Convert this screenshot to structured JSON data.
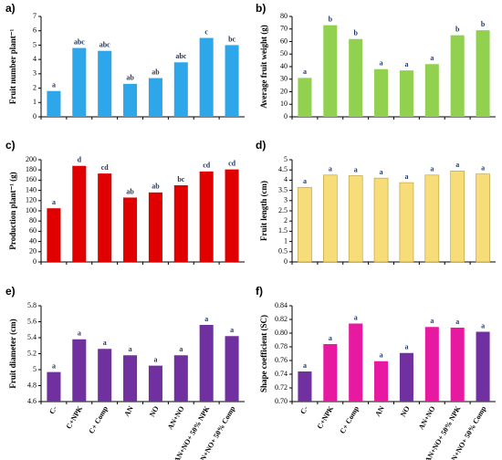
{
  "chart_data": [
    {
      "type": "bar",
      "title": "a)",
      "y_label": "Fruit number plant⁻¹",
      "values": [
        1.8,
        4.8,
        4.6,
        2.3,
        2.7,
        3.8,
        5.5,
        5.0
      ],
      "annotations": [
        "a",
        "abc",
        "abc",
        "ab",
        "ab",
        "abc",
        "c",
        "bc"
      ],
      "color": "#2ea6ea",
      "ylim": [
        0,
        7
      ],
      "yticks": [
        0,
        1,
        2,
        3,
        4,
        5,
        6,
        7
      ]
    },
    {
      "type": "bar",
      "title": "b)",
      "y_label": "Average fruit weight (g)",
      "values": [
        31,
        73,
        62,
        38,
        37,
        42,
        65,
        69
      ],
      "annotations": [
        "a",
        "b",
        "b",
        "a",
        "a",
        "a",
        "b",
        "b"
      ],
      "color": "#92d050",
      "ylim": [
        0,
        80
      ],
      "yticks": [
        0,
        10,
        20,
        30,
        40,
        50,
        60,
        70,
        80
      ]
    },
    {
      "type": "bar",
      "title": "c)",
      "y_label": "Production plant⁻¹ (g)",
      "values": [
        105,
        188,
        173,
        126,
        136,
        150,
        177,
        181
      ],
      "annotations": [
        "a",
        "d",
        "cd",
        "ab",
        "ab",
        "bc",
        "cd",
        "cd"
      ],
      "color": "#e00000",
      "ylim": [
        0,
        200
      ],
      "yticks": [
        0,
        20,
        40,
        60,
        80,
        100,
        120,
        140,
        160,
        180,
        200
      ]
    },
    {
      "type": "bar",
      "title": "d)",
      "y_label": "Fruit length (cm)",
      "values": [
        3.65,
        4.25,
        4.22,
        4.1,
        3.88,
        4.25,
        4.45,
        4.3
      ],
      "annotations": [
        "a",
        "a",
        "a",
        "a",
        "a",
        "a",
        "a",
        "a"
      ],
      "color": "#f7dc7a",
      "ylim": [
        0,
        5
      ],
      "yticks": [
        0,
        0.5,
        1,
        1.5,
        2,
        2.5,
        3,
        3.5,
        4,
        4.5,
        5
      ]
    },
    {
      "type": "bar",
      "title": "e)",
      "y_label": "Fruit diameter (cm)",
      "categories": [
        "C-",
        "C+NPK",
        "C+ Comp",
        "AN",
        "NO",
        "AN+NO",
        "AN+NO+ 50% NPK",
        "AN+NO+ 50% Comp"
      ],
      "values": [
        4.97,
        5.38,
        5.26,
        5.18,
        5.05,
        5.18,
        5.56,
        5.42
      ],
      "annotations": [
        "a",
        "a",
        "a",
        "a",
        "a",
        "a",
        "a",
        "a"
      ],
      "color": "#7030a0",
      "ylim": [
        4.6,
        5.8
      ],
      "yticks": [
        4.6,
        4.8,
        5,
        5.2,
        5.4,
        5.6,
        5.8
      ]
    },
    {
      "type": "bar",
      "title": "f)",
      "y_label": "Shape coefficient (SC)",
      "categories": [
        "C-",
        "C+NPK",
        "C+ Comp",
        "AN",
        "NO",
        "AN+NO",
        "AN+NO+ 50% NPK",
        "AN+NO+ 50% Comp"
      ],
      "values": [
        0.744,
        0.784,
        0.814,
        0.759,
        0.771,
        0.809,
        0.808,
        0.802
      ],
      "annotations": [
        "a",
        "a",
        "a",
        "a",
        "a",
        "a",
        "a",
        "a"
      ],
      "colors": [
        "#7030a0",
        "#e619a0",
        "#e619a0",
        "#e619a0",
        "#7030a0",
        "#e619a0",
        "#e619a0",
        "#7030a0"
      ],
      "ylim": [
        0.7,
        0.84
      ],
      "yticks": [
        {
          "value": 0.7,
          "label": "0.70"
        },
        0.72,
        0.74,
        0.76,
        0.78,
        {
          "value": 0.8,
          "label": "0.80"
        },
        0.82,
        0.84
      ]
    }
  ]
}
